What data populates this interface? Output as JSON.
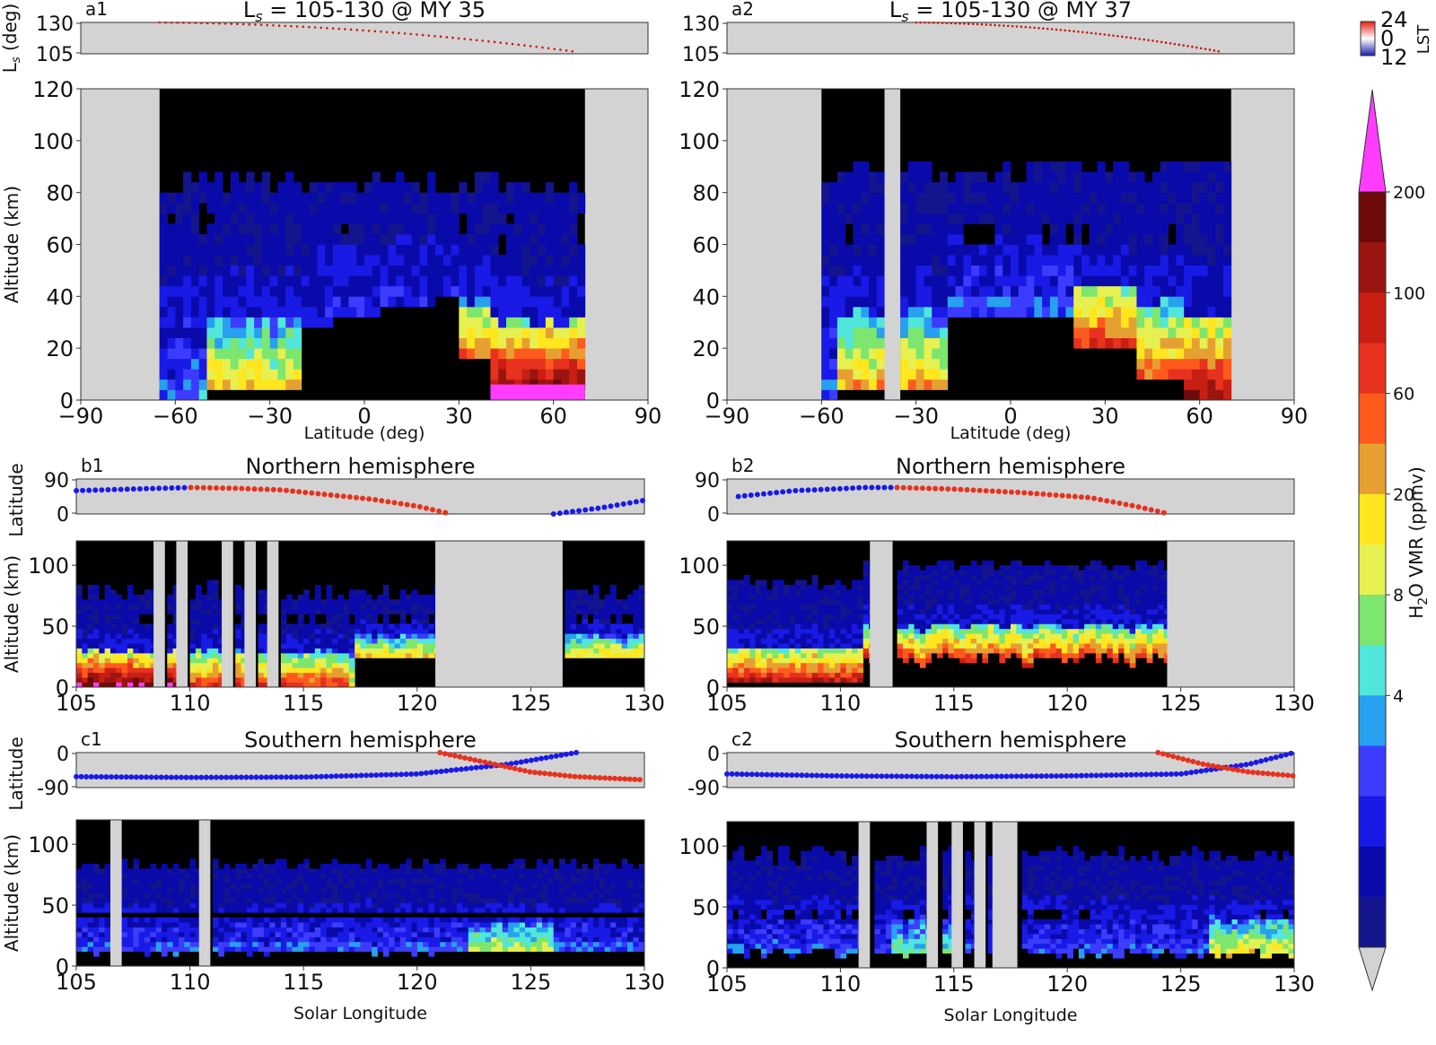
{
  "figure": {
    "panels": {
      "a1": {
        "label": "a1",
        "title": "L_s = 105-130 @ MY 35",
        "strip_ylabel": "L_s (deg)",
        "strip_ticks": [
          "130",
          "105"
        ],
        "ylabel": "Altitude (km)",
        "yticks": [
          "120",
          "100",
          "80",
          "60",
          "40",
          "20",
          "0"
        ],
        "xlabel": "Latitude (deg)",
        "xticks": [
          "−90",
          "−60",
          "−30",
          "0",
          "30",
          "60",
          "90"
        ]
      },
      "a2": {
        "label": "a2",
        "title": "L_s = 105-130 @ MY 37",
        "strip_ticks": [
          "130",
          "105"
        ],
        "yticks": [
          "120",
          "100",
          "80",
          "60",
          "40",
          "20",
          "0"
        ],
        "xlabel": "Latitude (deg)",
        "xticks": [
          "−90",
          "−60",
          "−30",
          "0",
          "30",
          "60",
          "90"
        ]
      },
      "b1": {
        "label": "b1",
        "title": "Northern hemisphere",
        "strip_ylabel": "Latitude",
        "strip_ticks": [
          "90",
          "0"
        ],
        "ylabel": "Altitude (km)",
        "yticks": [
          "100",
          "50",
          "0"
        ],
        "xticks": [
          "105",
          "110",
          "115",
          "120",
          "125",
          "130"
        ]
      },
      "b2": {
        "label": "b2",
        "title": "Northern hemisphere",
        "strip_ticks": [
          "90",
          "0"
        ],
        "yticks": [
          "100",
          "50",
          "0"
        ],
        "xticks": [
          "105",
          "110",
          "115",
          "120",
          "125",
          "130"
        ]
      },
      "c1": {
        "label": "c1",
        "title": "Southern hemisphere",
        "strip_ylabel": "Latitude",
        "strip_ticks": [
          "0",
          "-90"
        ],
        "ylabel": "Altitude (km)",
        "yticks": [
          "100",
          "50",
          "0"
        ],
        "xticks": [
          "105",
          "110",
          "115",
          "120",
          "125",
          "130"
        ],
        "xlabel": "Solar Longitude"
      },
      "c2": {
        "label": "c2",
        "title": "Southern hemisphere",
        "strip_ticks": [
          "0",
          "-90"
        ],
        "yticks": [
          "100",
          "50",
          "0"
        ],
        "xticks": [
          "105",
          "110",
          "115",
          "120",
          "125",
          "130"
        ],
        "xlabel": "Solar Longitude"
      }
    },
    "lst_colorbar": {
      "label": "LST",
      "ticks": [
        "24",
        "0",
        "12"
      ]
    },
    "vmr_colorbar": {
      "label": "H₂O VMR (ppmv)",
      "ticks": [
        "200",
        "100",
        "60",
        "20",
        "8",
        "4"
      ]
    }
  },
  "chart_data": {
    "type": "heatmap",
    "colormap": [
      "#14148c",
      "#0a0aaa",
      "#1a1ae6",
      "#3c3cff",
      "#28a0f0",
      "#50e6dc",
      "#7ce66e",
      "#e6f050",
      "#ffe61e",
      "#e6a032",
      "#ff5a1e",
      "#e6321e",
      "#c81e14",
      "#9a1410",
      "#6e0a0a",
      "#ff3cff"
    ],
    "colorbar_boundaries": [
      4,
      8,
      20,
      60,
      100,
      200
    ],
    "no_data_color": "#d3d3d3",
    "panels": [
      {
        "id": "a1",
        "x_range": [
          -90,
          90
        ],
        "y_range": [
          0,
          120
        ],
        "x_unit": "deg latitude",
        "y_unit": "km",
        "observed_latitude_range": [
          -65,
          70
        ],
        "cloud_top_km": [
          0,
          82,
          84,
          86,
          86,
          84,
          86,
          84,
          86,
          86,
          84,
          84,
          82,
          82,
          80,
          82,
          78
        ],
        "cloud_lat": [
          -65,
          -55,
          -45,
          -35,
          -25,
          -15,
          -5,
          5,
          15,
          25,
          35,
          45,
          50,
          55,
          60,
          65,
          70
        ],
        "max_vmr_ppmv": {
          "south": 20,
          "north": 200
        },
        "color_rows": {
          "lat": [
            -65,
            -55,
            -45,
            -35,
            -25,
            -15,
            -5,
            5,
            15,
            25,
            35,
            45,
            50,
            55,
            60,
            65,
            70
          ],
          "alt_km": [
            5,
            15,
            25,
            35
          ],
          "values": [
            [
              1,
              1,
              1,
              1
            ],
            [
              1,
              2,
              4,
              3
            ],
            [
              2,
              6,
              7,
              4
            ],
            [
              2,
              7,
              8,
              4
            ],
            [
              2,
              7,
              7,
              4
            ],
            [
              1,
              1,
              3,
              3
            ],
            [
              0,
              0,
              0,
              1
            ],
            [
              0,
              0,
              0,
              1
            ],
            [
              0,
              0,
              0,
              1
            ],
            [
              0,
              0,
              0,
              2
            ],
            [
              0,
              0,
              10,
              9
            ],
            [
              15,
              11,
              9,
              6
            ],
            [
              15,
              11,
              9,
              6
            ],
            [
              15,
              11,
              9,
              5
            ],
            [
              14,
              12,
              8,
              5
            ],
            [
              15,
              12,
              9,
              5
            ],
            [
              15,
              12,
              9,
              5
            ]
          ]
        }
      },
      {
        "id": "a2",
        "x_range": [
          -90,
          90
        ],
        "y_range": [
          0,
          120
        ],
        "x_unit": "deg latitude",
        "y_unit": "km",
        "observed_latitude_range": [
          -60,
          70
        ],
        "gap_latitude": [
          -40,
          -35
        ],
        "max_vmr_ppmv": {
          "south": 60,
          "north": 200
        }
      },
      {
        "id": "b1",
        "x_range": [
          105,
          130
        ],
        "y_range": [
          0,
          120
        ],
        "x_unit": "Solar Longitude",
        "y_unit": "km",
        "gaps_ls": [
          [
            108.4,
            108.9
          ],
          [
            109.4,
            109.9
          ],
          [
            111.4,
            111.9
          ],
          [
            112.4,
            112.9
          ],
          [
            113.4,
            113.9
          ],
          [
            120.8,
            126.4
          ]
        ],
        "strip_latitude": {
          "ls": [
            105,
            108,
            110,
            112,
            114,
            116,
            118,
            120,
            121.5,
            126,
            128,
            130
          ],
          "lat": [
            60,
            65,
            68,
            66,
            62,
            50,
            38,
            20,
            0,
            0,
            15,
            35
          ],
          "lst_color": [
            "blue",
            "blue",
            "red",
            "red",
            "red",
            "red",
            "red",
            "red",
            "red",
            "blue",
            "blue",
            "blue"
          ]
        }
      },
      {
        "id": "b2",
        "x_range": [
          105,
          130
        ],
        "y_range": [
          0,
          120
        ],
        "x_unit": "Solar Longitude",
        "y_unit": "km",
        "gaps_ls": [
          [
            111.3,
            112.3
          ],
          [
            124.4,
            130
          ]
        ],
        "strip_latitude": {
          "ls": [
            105.5,
            108,
            110,
            111,
            112.5,
            115,
            118,
            121,
            123,
            124.5
          ],
          "lat": [
            45,
            60,
            65,
            68,
            68,
            64,
            55,
            42,
            20,
            0
          ],
          "lst_color": [
            "blue",
            "blue",
            "blue",
            "blue",
            "red",
            "red",
            "red",
            "red",
            "red",
            "red"
          ]
        }
      },
      {
        "id": "c1",
        "x_range": [
          105,
          130
        ],
        "y_range": [
          0,
          120
        ],
        "x_unit": "Solar Longitude",
        "y_unit": "km",
        "gaps_ls": [
          [
            106.5,
            107
          ],
          [
            110.4,
            110.9
          ]
        ],
        "strip_latitude": {
          "blue_ls": [
            105,
            110,
            115,
            120,
            124,
            127
          ],
          "blue_lat": [
            -62,
            -64,
            -63,
            -55,
            -30,
            0
          ],
          "red_ls": [
            121,
            123,
            125,
            127,
            130
          ],
          "red_lat": [
            0,
            -25,
            -50,
            -62,
            -70
          ]
        }
      },
      {
        "id": "c2",
        "x_range": [
          105,
          130
        ],
        "y_range": [
          0,
          120
        ],
        "x_unit": "Solar Longitude",
        "y_unit": "km",
        "gaps_ls": [
          [
            110.8,
            111.3
          ],
          [
            113.8,
            114.3
          ],
          [
            114.9,
            115.4
          ],
          [
            115.9,
            116.4
          ],
          [
            116.7,
            117.8
          ]
        ],
        "strip_latitude": {
          "blue_ls": [
            105,
            110,
            115,
            120,
            125,
            128,
            130
          ],
          "blue_lat": [
            -55,
            -60,
            -62,
            -60,
            -55,
            -30,
            0
          ],
          "red_ls": [
            124,
            126,
            128,
            130
          ],
          "red_lat": [
            0,
            -30,
            -50,
            -60
          ]
        }
      }
    ]
  }
}
